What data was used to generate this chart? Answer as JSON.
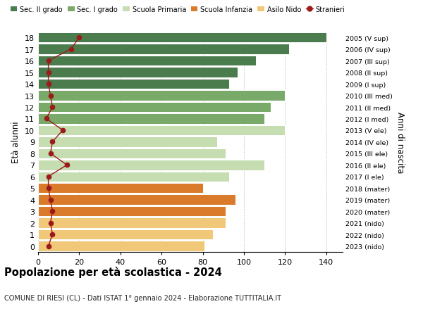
{
  "ages": [
    18,
    17,
    16,
    15,
    14,
    13,
    12,
    11,
    10,
    9,
    8,
    7,
    6,
    5,
    4,
    3,
    2,
    1,
    0
  ],
  "bar_values": [
    140,
    122,
    106,
    97,
    93,
    120,
    113,
    110,
    120,
    87,
    91,
    110,
    93,
    80,
    96,
    91,
    91,
    85,
    81
  ],
  "bar_colors": [
    "#4a7c4e",
    "#4a7c4e",
    "#4a7c4e",
    "#4a7c4e",
    "#4a7c4e",
    "#7aaa6a",
    "#7aaa6a",
    "#7aaa6a",
    "#c5ddb0",
    "#c5ddb0",
    "#c5ddb0",
    "#c5ddb0",
    "#c5ddb0",
    "#d97b2a",
    "#d97b2a",
    "#d97b2a",
    "#f0c878",
    "#f0c878",
    "#f0c878"
  ],
  "right_labels": [
    "2005 (V sup)",
    "2006 (IV sup)",
    "2007 (III sup)",
    "2008 (II sup)",
    "2009 (I sup)",
    "2010 (III med)",
    "2011 (II med)",
    "2012 (I med)",
    "2013 (V ele)",
    "2014 (IV ele)",
    "2015 (III ele)",
    "2016 (II ele)",
    "2017 (I ele)",
    "2018 (mater)",
    "2019 (mater)",
    "2020 (mater)",
    "2021 (nido)",
    "2022 (nido)",
    "2023 (nido)"
  ],
  "stranieri_values": [
    20,
    16,
    5,
    5,
    5,
    6,
    7,
    4,
    12,
    7,
    6,
    14,
    5,
    5,
    6,
    7,
    6,
    7,
    5
  ],
  "stranieri_color": "#9b1a1a",
  "legend_labels": [
    "Sec. II grado",
    "Sec. I grado",
    "Scuola Primaria",
    "Scuola Infanzia",
    "Asilo Nido",
    "Stranieri"
  ],
  "legend_colors": [
    "#4a7c4e",
    "#7aaa6a",
    "#c5ddb0",
    "#d97b2a",
    "#f0c878",
    "#9b1a1a"
  ],
  "ylabel_left": "Età alunni",
  "ylabel_right": "Anni di nascita",
  "title": "Popolazione per età scolastica - 2024",
  "subtitle": "COMUNE DI RIESI (CL) - Dati ISTAT 1° gennaio 2024 - Elaborazione TUTTITALIA.IT",
  "xlim": [
    0,
    148
  ],
  "xticks": [
    0,
    20,
    40,
    60,
    80,
    100,
    120,
    140
  ],
  "bg_color": "#ffffff",
  "bar_height": 0.88
}
